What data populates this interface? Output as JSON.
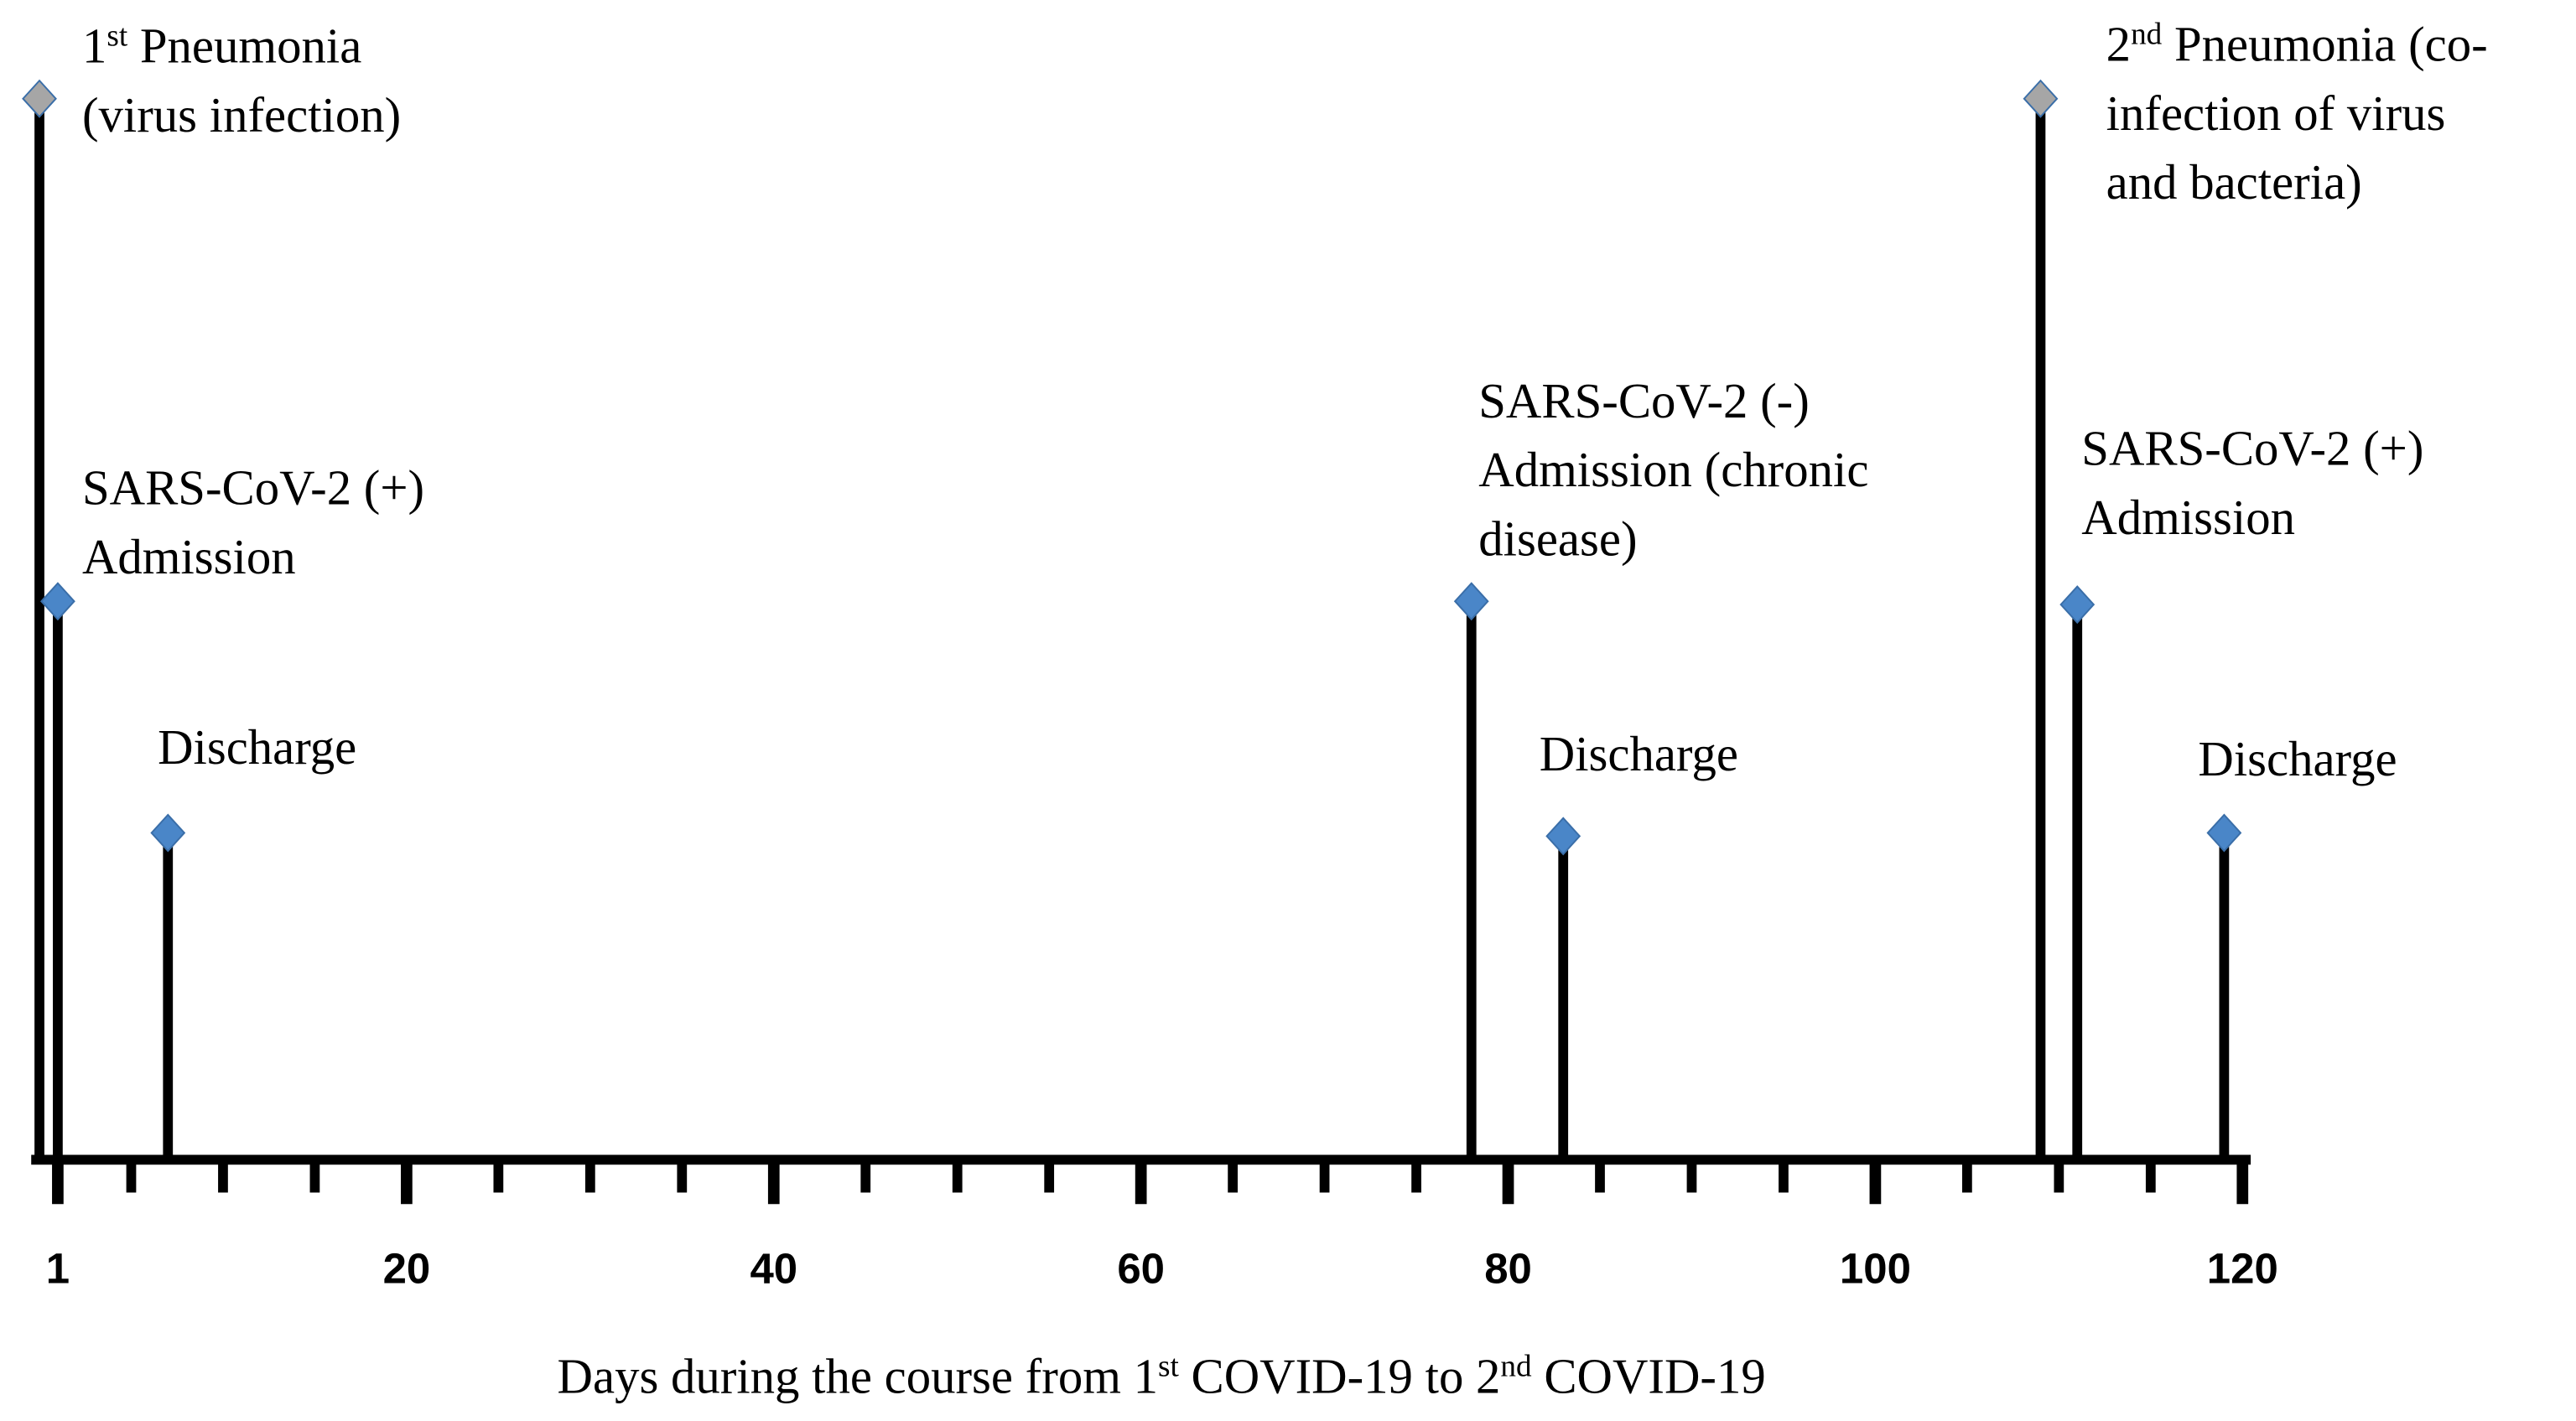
{
  "chart_data": {
    "type": "timeline",
    "x_label": [
      {
        "t": "Days during the course from 1"
      },
      {
        "t": "st",
        "sup": true
      },
      {
        "t": " COVID-19 to 2"
      },
      {
        "t": "nd",
        "sup": true
      },
      {
        "t": " COVID-19"
      }
    ],
    "xlim": [
      0,
      120
    ],
    "xticks": [
      1,
      20,
      40,
      60,
      80,
      100,
      120
    ],
    "minor_xticks": [
      5,
      10,
      15,
      25,
      30,
      35,
      45,
      50,
      55,
      65,
      70,
      75,
      85,
      90,
      95,
      105,
      110,
      115
    ],
    "events": [
      {
        "day": 0,
        "color": "#a6a6a6",
        "label": [
          [
            {
              "t": "1"
            },
            {
              "t": "st",
              "sup": true
            },
            {
              "t": " Pneumonia"
            }
          ],
          [
            {
              "t": "(virus infection)"
            }
          ]
        ]
      },
      {
        "day": 1,
        "color": "#4a86c8",
        "label": [
          [
            {
              "t": "SARS-CoV-2 (+)"
            }
          ],
          [
            {
              "t": "Admission"
            }
          ]
        ]
      },
      {
        "day": 7,
        "color": "#4a86c8",
        "label": [
          [
            {
              "t": "Discharge"
            }
          ]
        ]
      },
      {
        "day": 78,
        "color": "#4a86c8",
        "label": [
          [
            {
              "t": "SARS-CoV-2 (-)"
            }
          ],
          [
            {
              "t": "Admission (chronic"
            }
          ],
          [
            {
              "t": "disease)"
            }
          ]
        ]
      },
      {
        "day": 83,
        "color": "#4a86c8",
        "label": [
          [
            {
              "t": "Discharge"
            }
          ]
        ]
      },
      {
        "day": 109,
        "color": "#a6a6a6",
        "label": [
          [
            {
              "t": "2"
            },
            {
              "t": "nd",
              "sup": true
            },
            {
              "t": " Pneumonia (co-"
            }
          ],
          [
            {
              "t": "infection of virus"
            }
          ],
          [
            {
              "t": "and bacteria)"
            }
          ]
        ]
      },
      {
        "day": 111,
        "color": "#4a86c8",
        "label": [
          [
            {
              "t": "SARS-CoV-2 (+)"
            }
          ],
          [
            {
              "t": "Admission"
            }
          ]
        ]
      },
      {
        "day": 119,
        "color": "#4a86c8",
        "label": [
          [
            {
              "t": "Discharge"
            }
          ]
        ]
      }
    ]
  }
}
